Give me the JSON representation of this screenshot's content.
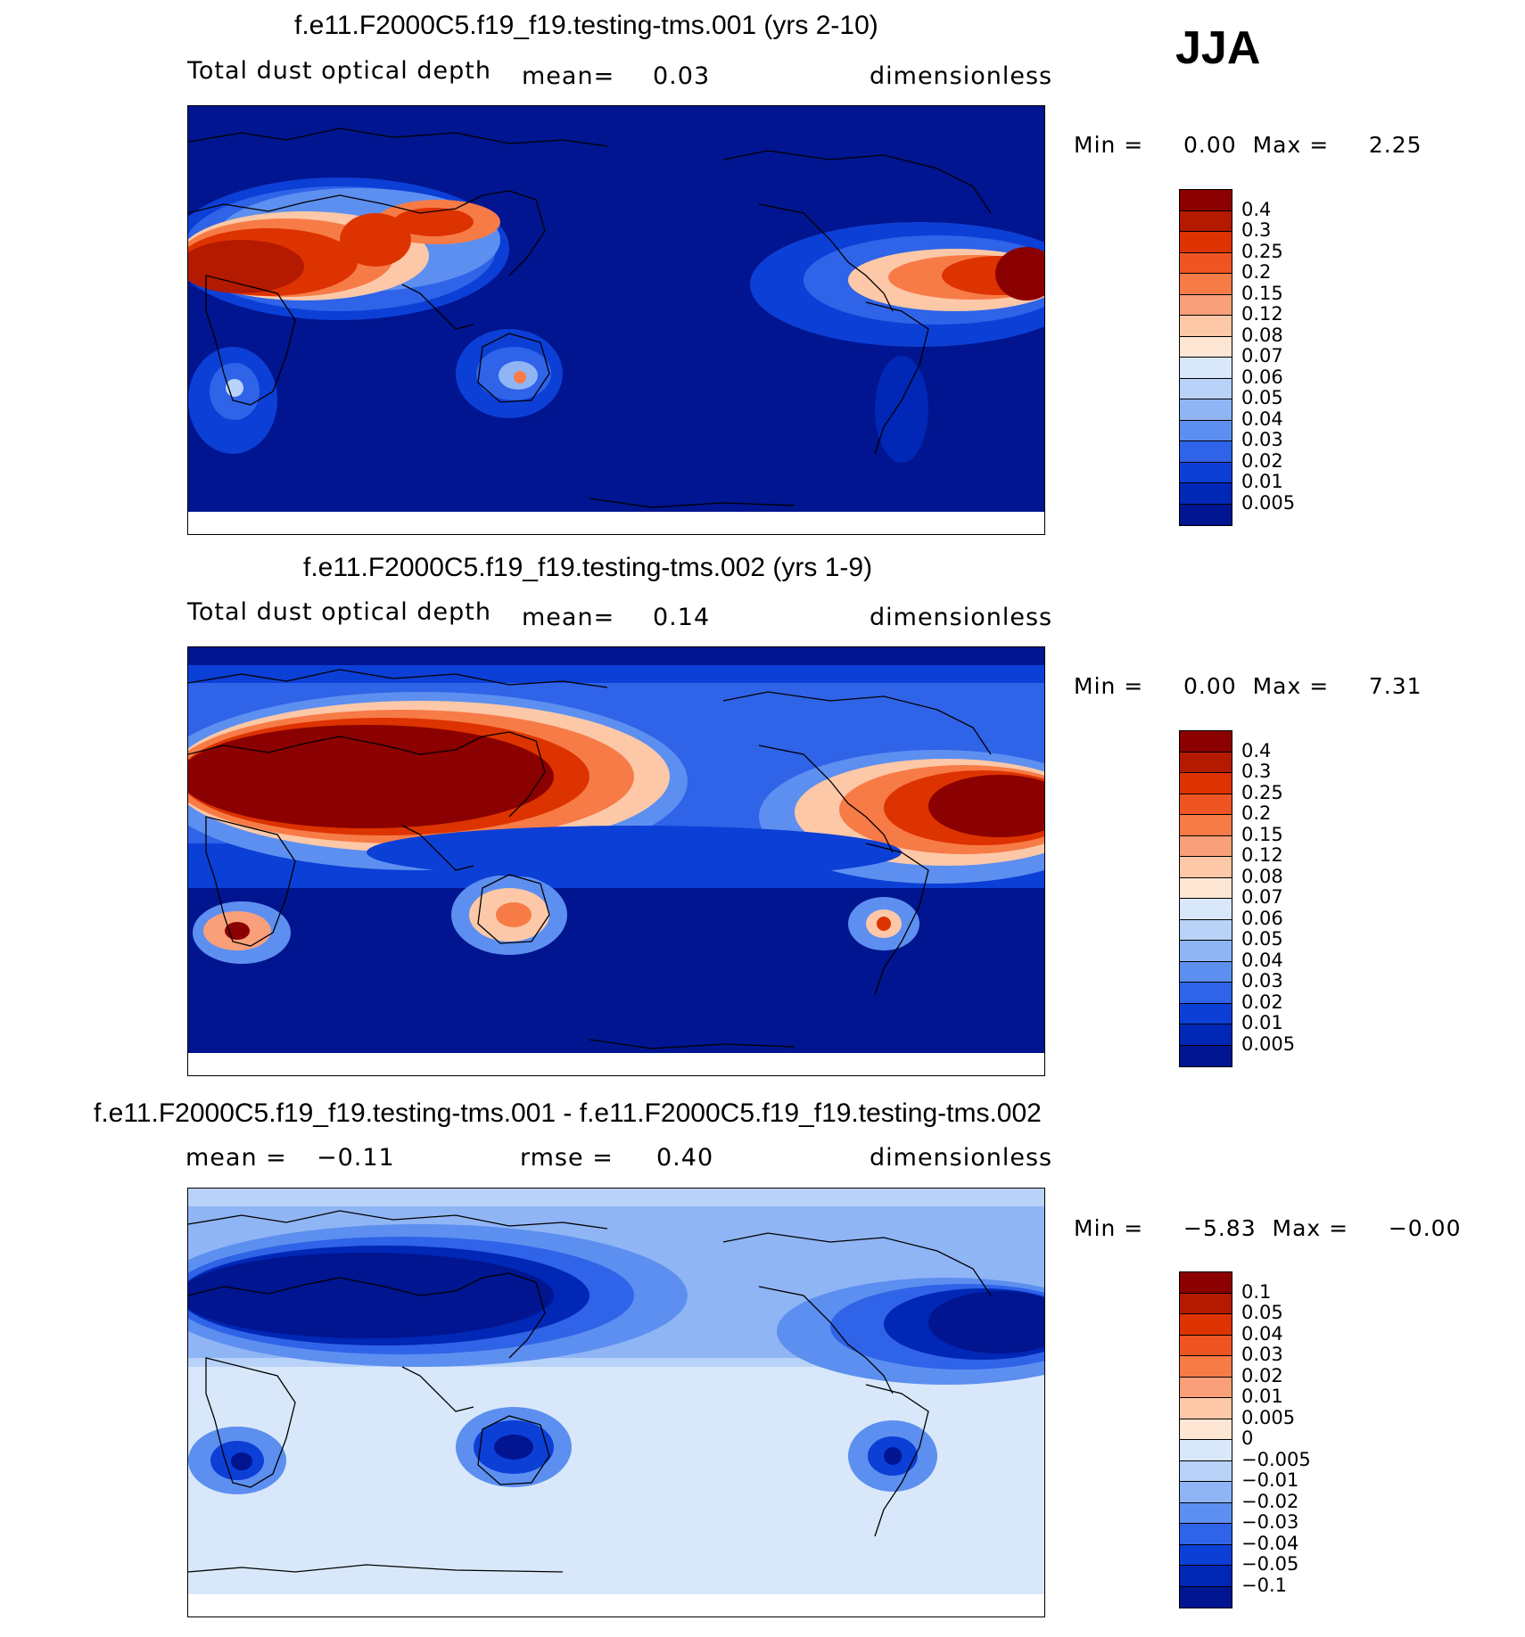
{
  "season": "JJA",
  "panels": [
    {
      "title": "f.e11.F2000C5.f19_f19.testing-tms.001 (yrs 2-10)",
      "left_label": "Total dust optical depth",
      "mid_label": "mean=",
      "mid_value": "0.03",
      "units": "dimensionless",
      "min_label": "Min =",
      "min_value": "0.00",
      "max_label": "Max =",
      "max_value": "2.25",
      "colorbar_labels": [
        "0.4",
        "0.3",
        "0.25",
        "0.2",
        "0.15",
        "0.12",
        "0.08",
        "0.07",
        "0.06",
        "0.05",
        "0.04",
        "0.03",
        "0.02",
        "0.01",
        "0.005"
      ],
      "colorbar_colors": [
        "#8b0000",
        "#b31a00",
        "#dd3300",
        "#ee5522",
        "#f77b47",
        "#f9a07a",
        "#fcc8a8",
        "#fde6d4",
        "#d8e8fa",
        "#b9d3f8",
        "#8fb5f5",
        "#5d8ff0",
        "#2f63e8",
        "#0c3fd6",
        "#0027b5",
        "#00158f"
      ]
    },
    {
      "title": "f.e11.F2000C5.f19_f19.testing-tms.002 (yrs 1-9)",
      "left_label": "Total dust optical depth",
      "mid_label": "mean=",
      "mid_value": "0.14",
      "units": "dimensionless",
      "min_label": "Min =",
      "min_value": "0.00",
      "max_label": "Max =",
      "max_value": "7.31",
      "colorbar_labels": [
        "0.4",
        "0.3",
        "0.25",
        "0.2",
        "0.15",
        "0.12",
        "0.08",
        "0.07",
        "0.06",
        "0.05",
        "0.04",
        "0.03",
        "0.02",
        "0.01",
        "0.005"
      ],
      "colorbar_colors": [
        "#8b0000",
        "#b31a00",
        "#dd3300",
        "#ee5522",
        "#f77b47",
        "#f9a07a",
        "#fcc8a8",
        "#fde6d4",
        "#d8e8fa",
        "#b9d3f8",
        "#8fb5f5",
        "#5d8ff0",
        "#2f63e8",
        "#0c3fd6",
        "#0027b5",
        "#00158f"
      ]
    },
    {
      "title": "f.e11.F2000C5.f19_f19.testing-tms.001 - f.e11.F2000C5.f19_f19.testing-tms.002",
      "left_label": "mean =",
      "left_value": "−0.11",
      "mid_label": "rmse =",
      "mid_value": "0.40",
      "units": "dimensionless",
      "min_label": "Min =",
      "min_value": "−5.83",
      "max_label": "Max =",
      "max_value": "−0.00",
      "colorbar_labels": [
        "0.1",
        "0.05",
        "0.04",
        "0.03",
        "0.02",
        "0.01",
        "0.005",
        "0",
        "−0.005",
        "−0.01",
        "−0.02",
        "−0.03",
        "−0.04",
        "−0.05",
        "−0.1"
      ],
      "colorbar_colors": [
        "#8b0000",
        "#b31a00",
        "#dd3300",
        "#ee5522",
        "#f77b47",
        "#f9a07a",
        "#fcc8a8",
        "#fde6d4",
        "#d8e8fa",
        "#b9d3f8",
        "#8fb5f5",
        "#5d8ff0",
        "#2f63e8",
        "#0c3fd6",
        "#0027b5",
        "#00158f"
      ]
    }
  ]
}
